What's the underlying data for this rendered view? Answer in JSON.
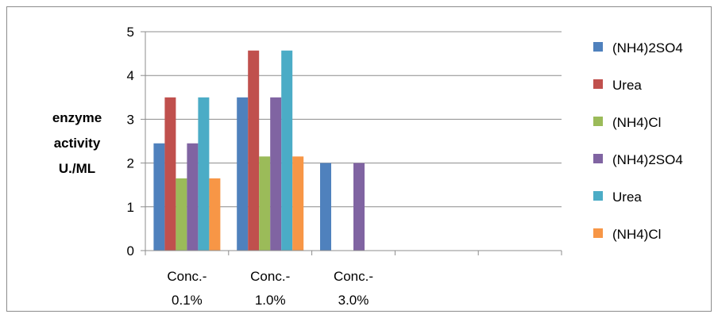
{
  "chart_data": {
    "type": "bar",
    "title": "",
    "xlabel": "",
    "ylabel_lines": [
      "enzyme",
      "activity",
      "U./ML"
    ],
    "categories": [
      [
        "Conc.-",
        "0.1%"
      ],
      [
        "Conc.-",
        "1.0%"
      ],
      [
        "Conc.-",
        "3.0%"
      ],
      [
        "",
        ""
      ],
      [
        "",
        ""
      ]
    ],
    "ylim": [
      0,
      5
    ],
    "yticks": [
      0,
      1,
      2,
      3,
      4,
      5
    ],
    "grid": true,
    "legend_position": "right",
    "series": [
      {
        "name": "(NH4)2SO4",
        "color": "#4f81bd",
        "values": [
          2.45,
          3.5,
          2.0,
          null,
          null
        ]
      },
      {
        "name": "Urea",
        "color": "#c0504d",
        "values": [
          3.5,
          4.57,
          null,
          null,
          null
        ]
      },
      {
        "name": "(NH4)Cl",
        "color": "#9bbb59",
        "values": [
          1.65,
          2.15,
          null,
          null,
          null
        ]
      },
      {
        "name": "(NH4)2SO4",
        "color": "#8064a2",
        "values": [
          2.45,
          3.5,
          2.0,
          null,
          null
        ]
      },
      {
        "name": "Urea",
        "color": "#4bacc6",
        "values": [
          3.5,
          4.57,
          null,
          null,
          null
        ]
      },
      {
        "name": "(NH4)Cl",
        "color": "#f79646",
        "values": [
          1.65,
          2.15,
          null,
          null,
          null
        ]
      }
    ]
  }
}
